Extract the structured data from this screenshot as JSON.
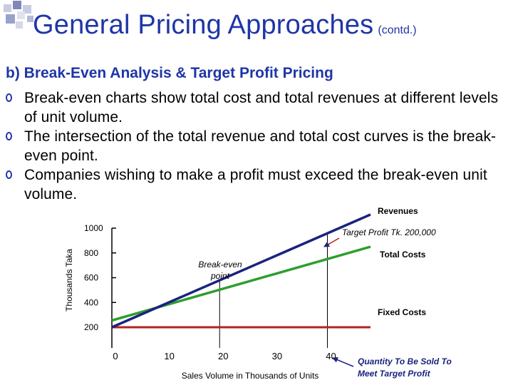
{
  "slide": {
    "title": "General Pricing Approaches",
    "title_suffix": "(contd.)",
    "subtitle": "b) Break-Even Analysis & Target Profit Pricing",
    "bullets": [
      "Break-even charts show total cost and total revenues at different levels of unit volume.",
      "The intersection of the total revenue and total cost curves is the break-even point.",
      "Companies wishing to make a profit must exceed the break-even unit volume."
    ]
  },
  "colors": {
    "title": "#1f35a8",
    "revenue": "#1a237e",
    "total_cost": "#2e9e2e",
    "fixed_cost": "#b22222",
    "annotation": "#1a237e"
  },
  "chart_data": {
    "type": "line",
    "xlabel": "Sales Volume in Thousands of Units",
    "ylabel": "Thousands Taka",
    "x_ticks": [
      0,
      10,
      20,
      30,
      40
    ],
    "y_ticks": [
      200,
      400,
      600,
      800,
      1000
    ],
    "xlim": [
      0,
      48
    ],
    "ylim": [
      200,
      1000
    ],
    "series": [
      {
        "name": "Revenues",
        "color": "#1a237e",
        "points": [
          [
            0,
            200
          ],
          [
            48,
            1110
          ]
        ]
      },
      {
        "name": "Total Costs",
        "color": "#2e9e2e",
        "points": [
          [
            0,
            255
          ],
          [
            48,
            850
          ]
        ]
      },
      {
        "name": "Fixed Costs",
        "color": "#b22222",
        "points": [
          [
            0,
            200
          ],
          [
            48,
            200
          ]
        ]
      }
    ],
    "annotations": {
      "break_even": "Break-even point",
      "target_profit": "Target Profit Tk. 200,000",
      "quantity": "Quantity To Be Sold To Meet Target Profit"
    },
    "break_even_x": 20,
    "target_x": 40
  }
}
